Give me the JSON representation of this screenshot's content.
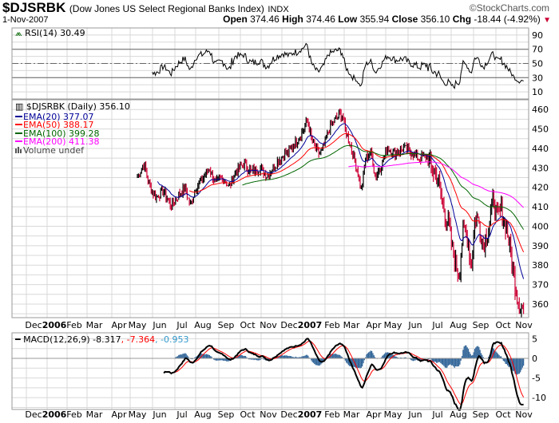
{
  "header": {
    "symbol": "$DJSRBK",
    "name": "(Dow Jones US Select Regional Banks Index)",
    "exchange": "INDX",
    "copyright": "©StockCharts.com",
    "date": "1-Nov-2007",
    "open_label": "Open",
    "open": "374.46",
    "high_label": "High",
    "high": "374.46",
    "low_label": "Low",
    "low": "355.94",
    "close_label": "Close",
    "close": "356.10",
    "chg_label": "Chg",
    "chg": "-18.44 (-4.92%)"
  },
  "colors": {
    "up": "#000000",
    "down": "#cc0033",
    "ema20": "#000099",
    "ema50": "#ff0000",
    "ema100": "#006600",
    "ema200": "#ff00ff",
    "hist": "#336699",
    "signal": "#ff0000",
    "grid": "#d8d8d8"
  },
  "chart_data": [
    {
      "type": "line",
      "title": "RSI(14) 30.49",
      "ylim": [
        0,
        100
      ],
      "ticks": [
        "90",
        "70",
        "50",
        "30",
        "10"
      ],
      "tick_values": [
        90,
        70,
        50,
        30,
        10
      ],
      "reference_lines": [
        70,
        50,
        30
      ]
    },
    {
      "type": "candlestick",
      "legend": {
        "main": "$DJSRBK (Daily) 356.10",
        "ema20": "EMA(20) 377.07",
        "ema50": "EMA(50) 388.17",
        "ema100": "EMA(100) 399.28",
        "ema200": "EMA(200) 411.38",
        "volume": "Volume undef"
      },
      "ylim": [
        353,
        465
      ],
      "ticks": [
        "460",
        "450",
        "440",
        "430",
        "420",
        "410",
        "400",
        "390",
        "380",
        "370",
        "360"
      ],
      "tick_values": [
        460,
        450,
        440,
        430,
        420,
        410,
        400,
        390,
        380,
        370,
        360
      ],
      "x_unit": "months since May 2006",
      "close_keypoints": [
        [
          0,
          425
        ],
        [
          0.29,
          432
        ],
        [
          0.57,
          420
        ],
        [
          0.82,
          415
        ],
        [
          1.18,
          418
        ],
        [
          1.54,
          410
        ],
        [
          1.79,
          415
        ],
        [
          2.15,
          420
        ],
        [
          2.37,
          410
        ],
        [
          2.62,
          420
        ],
        [
          2.97,
          425
        ],
        [
          3.23,
          430
        ],
        [
          3.51,
          422
        ],
        [
          3.87,
          425
        ],
        [
          4.12,
          420
        ],
        [
          4.41,
          428
        ],
        [
          4.77,
          432
        ],
        [
          5.13,
          428
        ],
        [
          5.48,
          430
        ],
        [
          5.84,
          426
        ],
        [
          6.2,
          432
        ],
        [
          6.56,
          437
        ],
        [
          6.81,
          438
        ],
        [
          7.1,
          443
        ],
        [
          7.46,
          450
        ],
        [
          7.63,
          455
        ],
        [
          7.81,
          445
        ],
        [
          8.1,
          437
        ],
        [
          8.35,
          440
        ],
        [
          8.6,
          450
        ],
        [
          8.89,
          455
        ],
        [
          9.18,
          458
        ],
        [
          9.32,
          450
        ],
        [
          9.61,
          440
        ],
        [
          9.89,
          428
        ],
        [
          10.04,
          418
        ],
        [
          10.25,
          435
        ],
        [
          10.5,
          438
        ],
        [
          10.68,
          425
        ],
        [
          10.97,
          432
        ],
        [
          11.22,
          440
        ],
        [
          11.58,
          438
        ],
        [
          11.94,
          440
        ],
        [
          12.29,
          438
        ],
        [
          12.65,
          435
        ],
        [
          13.01,
          436
        ],
        [
          13.19,
          430
        ],
        [
          13.48,
          425
        ],
        [
          13.73,
          410
        ],
        [
          13.98,
          400
        ],
        [
          14.19,
          385
        ],
        [
          14.44,
          375
        ],
        [
          14.62,
          398
        ],
        [
          14.8,
          395
        ],
        [
          14.98,
          380
        ],
        [
          15.16,
          405
        ],
        [
          15.34,
          402
        ],
        [
          15.52,
          390
        ],
        [
          15.77,
          400
        ],
        [
          15.99,
          415
        ],
        [
          16.13,
          405
        ],
        [
          16.34,
          408
        ],
        [
          16.59,
          398
        ],
        [
          16.77,
          385
        ],
        [
          16.95,
          370
        ],
        [
          17.13,
          360
        ],
        [
          17.35,
          356
        ]
      ]
    },
    {
      "type": "line",
      "title": "MACD(12,26,9)",
      "values_text": {
        "macd": "-8.317",
        "signal": ", -7.364",
        "hist": ", -0.953"
      },
      "ylim": [
        -13,
        6.5
      ],
      "ticks": [
        "5",
        "0",
        "-5",
        "-10"
      ],
      "tick_values": [
        5,
        0,
        -5,
        -10
      ]
    }
  ],
  "xaxis": {
    "labels": [
      {
        "t": "Dec",
        "c": 42
      },
      {
        "t": "2006",
        "c": 68,
        "bold": true
      },
      {
        "t": "Feb",
        "c": 93
      },
      {
        "t": "Mar",
        "c": 118
      },
      {
        "t": "Apr",
        "c": 149
      },
      {
        "t": "May",
        "c": 172
      },
      {
        "t": "Jun",
        "c": 200
      },
      {
        "t": "Jul",
        "c": 228
      },
      {
        "t": "Aug",
        "c": 254
      },
      {
        "t": "Sep",
        "c": 283
      },
      {
        "t": "Oct",
        "c": 310
      },
      {
        "t": "Nov",
        "c": 336
      },
      {
        "t": "Dec",
        "c": 362
      },
      {
        "t": "2007",
        "c": 388,
        "bold": true
      },
      {
        "t": "Feb",
        "c": 416
      },
      {
        "t": "Mar",
        "c": 440
      },
      {
        "t": "Apr",
        "c": 468
      },
      {
        "t": "May",
        "c": 492
      },
      {
        "t": "Jun",
        "c": 520
      },
      {
        "t": "Jul",
        "c": 548
      },
      {
        "t": "Aug",
        "c": 574
      },
      {
        "t": "Sep",
        "c": 602
      },
      {
        "t": "Oct",
        "c": 630
      },
      {
        "t": "Nov",
        "c": 656
      }
    ]
  }
}
